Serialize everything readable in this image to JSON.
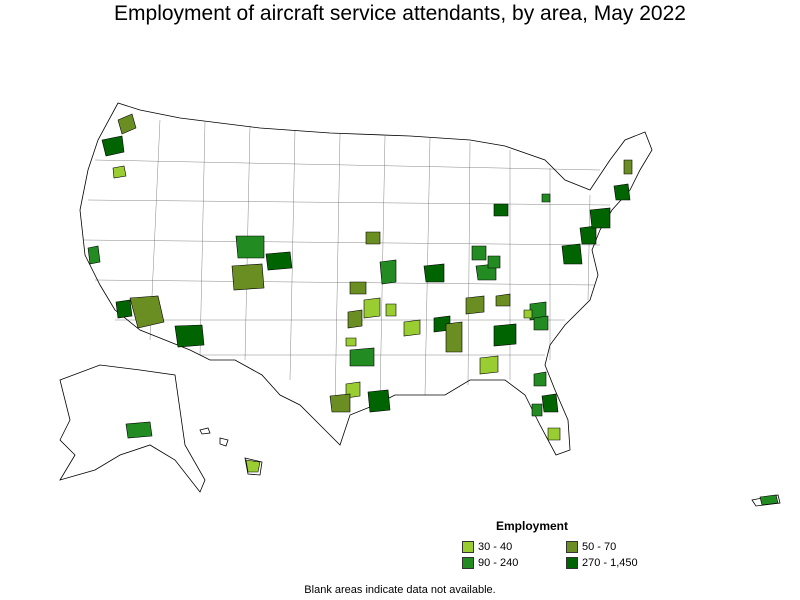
{
  "title": "Employment of aircraft service attendants, by area, May 2022",
  "legend": {
    "title": "Employment",
    "items": [
      {
        "label": "30 - 40",
        "color": "#9acd32"
      },
      {
        "label": "50 - 70",
        "color": "#6b8e23"
      },
      {
        "label": "90 - 240",
        "color": "#228b22"
      },
      {
        "label": "270 - 1,450",
        "color": "#006400"
      }
    ]
  },
  "note": "Blank areas indicate data not available.",
  "colors": {
    "outline": "#000000",
    "background": "#ffffff"
  }
}
